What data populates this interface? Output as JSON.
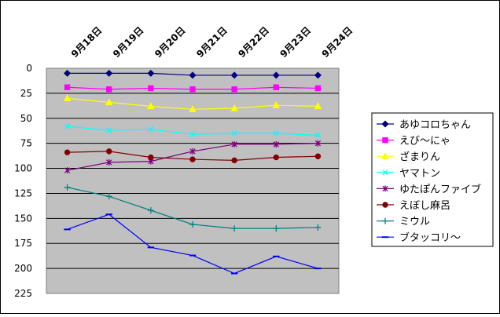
{
  "chart_data": {
    "type": "line",
    "categories": [
      "9月18日",
      "9月19日",
      "9月20日",
      "9月21日",
      "9月22日",
      "9月23日",
      "9月24日"
    ],
    "ylim": [
      225,
      0
    ],
    "y_reversed": true,
    "yticks": [
      0,
      25,
      50,
      75,
      100,
      125,
      150,
      175,
      200,
      225
    ],
    "grid": true,
    "legend_position": "right",
    "plot_background": "#c0c0c0",
    "series": [
      {
        "name": "あゆコロちゃん",
        "color": "#000080",
        "marker": "diamond",
        "values": [
          5,
          5,
          5,
          7,
          7,
          7,
          7
        ]
      },
      {
        "name": "えび～にゃ",
        "color": "#ff00ff",
        "marker": "square",
        "values": [
          19,
          21,
          20,
          21,
          21,
          19,
          20
        ]
      },
      {
        "name": "ざまりん",
        "color": "#ffff00",
        "marker": "triangle",
        "values": [
          30,
          34,
          38,
          41,
          40,
          37,
          38
        ]
      },
      {
        "name": "ヤマトン",
        "color": "#00ffff",
        "marker": "x",
        "values": [
          58,
          62,
          61,
          66,
          65,
          65,
          67
        ]
      },
      {
        "name": "ゆたぽんファイブ",
        "color": "#800080",
        "marker": "star",
        "values": [
          102,
          94,
          93,
          83,
          76,
          76,
          75
        ]
      },
      {
        "name": "えぼし麻呂",
        "color": "#800000",
        "marker": "circle",
        "values": [
          84,
          83,
          89,
          91,
          92,
          89,
          88
        ]
      },
      {
        "name": "ミウル",
        "color": "#008080",
        "marker": "plus",
        "values": [
          119,
          128,
          142,
          156,
          160,
          160,
          159
        ]
      },
      {
        "name": "ブタッコリ～",
        "color": "#0000ff",
        "marker": "dash",
        "values": [
          161,
          146,
          179,
          187,
          205,
          188,
          200
        ]
      }
    ]
  }
}
